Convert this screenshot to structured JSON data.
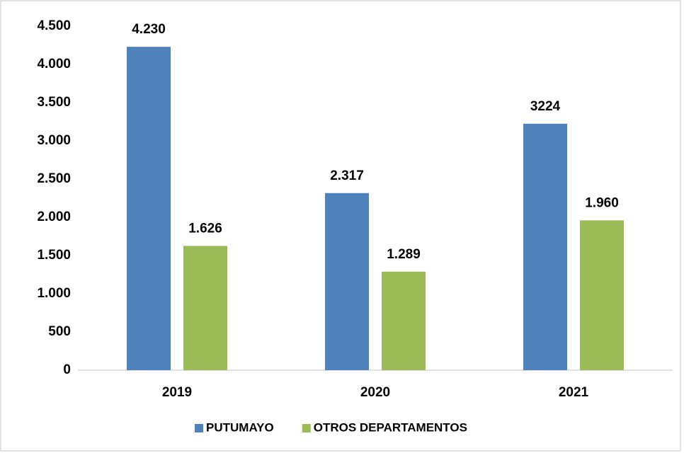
{
  "chart_data": {
    "type": "bar",
    "categories": [
      "2019",
      "2020",
      "2021"
    ],
    "series": [
      {
        "name": "PUTUMAYO",
        "color": "#4f81bd",
        "values": [
          4230,
          2317,
          3224
        ],
        "value_labels": [
          "4.230",
          "2.317",
          "3224"
        ]
      },
      {
        "name": "OTROS DEPARTAMENTOS",
        "color": "#9bbb59",
        "values": [
          1626,
          1289,
          1960
        ],
        "value_labels": [
          "1.626",
          "1.289",
          "1.960"
        ]
      }
    ],
    "ylim": [
      0,
      4500
    ],
    "yticks": [
      0,
      500,
      {
        "value": 1000,
        "label": "1.000"
      },
      {
        "value": 1500,
        "label": "1.500"
      },
      {
        "value": 2000,
        "label": "2.000"
      },
      {
        "value": 2500,
        "label": "2.500"
      },
      {
        "value": 3000,
        "label": "3.000"
      },
      {
        "value": 3500,
        "label": "3.500"
      },
      {
        "value": 4000,
        "label": "4.000"
      },
      {
        "value": 4500,
        "label": "4.500"
      }
    ],
    "grid": false,
    "legend": "bottom"
  }
}
